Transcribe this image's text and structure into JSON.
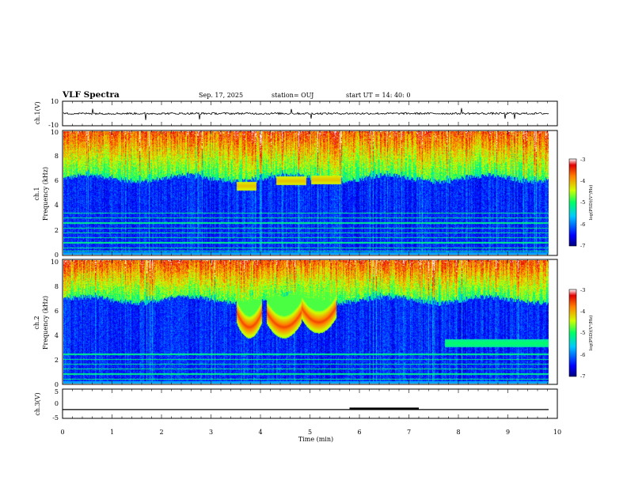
{
  "header": {
    "title": "VLF Spectra",
    "date": "Sep. 17, 2025",
    "station": "station= OUJ",
    "start": "start  UT  =   14: 40: 0"
  },
  "chart_data": [
    {
      "type": "line",
      "name": "ch1-waveform",
      "ylabel": "ch.1(V)",
      "ylim": [
        -10,
        10
      ],
      "ytick_labels": [
        "10",
        "-10"
      ],
      "baseline": 0,
      "noise_amplitude": 0.8,
      "spikes": [
        0.06,
        0.17,
        0.28,
        0.47,
        0.51,
        0.82,
        0.91,
        0.93
      ]
    },
    {
      "type": "heatmap",
      "name": "ch1-spectrogram",
      "ylabel": "ch.1\nFrequency (kHz)",
      "ylim": [
        0,
        10
      ],
      "xlim": [
        0,
        9.8
      ],
      "ytick_labels": [
        "0",
        "2",
        "4",
        "6",
        "8",
        "10"
      ],
      "colorbar": {
        "label": "log(PSD)(V²/Hz)",
        "range": [
          -7,
          -3
        ],
        "tick_labels": [
          "-3",
          "-4",
          "-5",
          "-6",
          "-7"
        ]
      },
      "features": [
        {
          "kind": "noise-floor-edge",
          "freq_khz": 6.2
        },
        {
          "kind": "tone-band",
          "t_min": [
            3.5,
            3.9
          ],
          "freq_khz": 5.6
        },
        {
          "kind": "tone-band",
          "t_min": [
            4.3,
            4.9
          ],
          "freq_khz": 6.0
        },
        {
          "kind": "tone-band",
          "t_min": [
            5.0,
            5.6
          ],
          "freq_khz": 6.1
        }
      ],
      "horizontal_lines_khz": [
        0.3,
        0.6,
        1.0,
        1.4,
        1.8,
        2.2,
        2.6,
        3.0,
        3.4
      ]
    },
    {
      "type": "heatmap",
      "name": "ch2-spectrogram",
      "ylabel": "ch.2\nFrequency (kHz)",
      "ylim": [
        0,
        10
      ],
      "xlim": [
        0,
        9.8
      ],
      "ytick_labels": [
        "0",
        "2",
        "4",
        "6",
        "8",
        "10"
      ],
      "colorbar": {
        "label": "log(PSD)(V²/Hz)",
        "range": [
          -7,
          -3
        ],
        "tick_labels": [
          "-3",
          "-4",
          "-5",
          "-6",
          "-7"
        ]
      },
      "features": [
        {
          "kind": "noise-floor-edge",
          "freq_khz": 6.8
        },
        {
          "kind": "chorus",
          "t_min": [
            3.5,
            4.0
          ],
          "freq_khz": 5.8
        },
        {
          "kind": "chorus",
          "t_min": [
            4.1,
            4.8
          ],
          "freq_khz": 5.8
        },
        {
          "kind": "chorus",
          "t_min": [
            4.8,
            5.5
          ],
          "freq_khz": 6.2
        },
        {
          "kind": "tone-band",
          "t_min": [
            7.7,
            9.8
          ],
          "freq_khz": 3.3
        }
      ],
      "horizontal_lines_khz": [
        0.4,
        0.8,
        1.2,
        1.6,
        2.0,
        2.4
      ]
    },
    {
      "type": "line",
      "name": "ch3-trace",
      "ylabel": "ch.3(V)",
      "ylim": [
        -5,
        5
      ],
      "ytick_labels": [
        "5",
        "0",
        "-5"
      ],
      "xlabel": "Time (min)",
      "xlim": [
        0,
        10
      ],
      "xtick_labels": [
        "0",
        "1",
        "2",
        "3",
        "4",
        "5",
        "6",
        "7",
        "8",
        "9",
        "10"
      ],
      "level": -2,
      "thick_segment_min": [
        5.8,
        7.2
      ]
    }
  ]
}
